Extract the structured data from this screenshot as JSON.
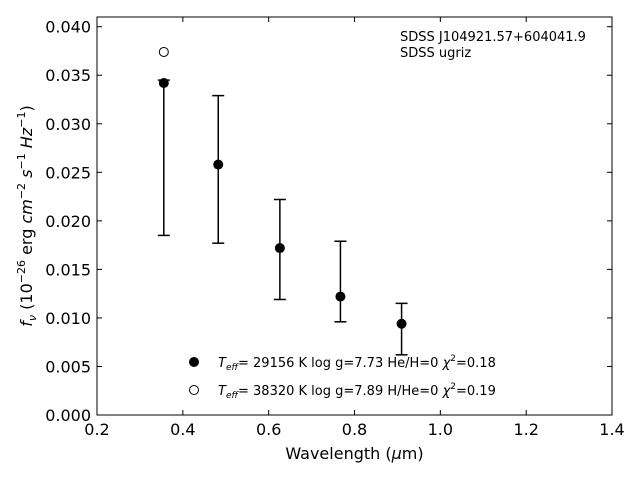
{
  "chart_data": {
    "type": "scatter",
    "title": "",
    "xlabel": "Wavelength (μm)",
    "ylabel": "f_ν (10^-26 erg cm^-2 s^-1 Hz^-1)",
    "xlim": [
      0.2,
      1.4
    ],
    "ylim": [
      0.0,
      0.041
    ],
    "x_ticks": [
      "0.2",
      "0.4",
      "0.6",
      "0.8",
      "1.0",
      "1.2",
      "1.4"
    ],
    "y_ticks": [
      "0.000",
      "0.005",
      "0.010",
      "0.015",
      "0.020",
      "0.025",
      "0.030",
      "0.035",
      "0.040"
    ],
    "grid": false,
    "legend_position": "bottom-center",
    "annotations": [
      "SDSS J104921.57+604041.9",
      "SDSS ugriz"
    ],
    "observed": {
      "x": [
        0.3557,
        0.4825,
        0.6261,
        0.7672,
        0.9097
      ],
      "y": [
        0.0342,
        0.0258,
        0.0172,
        0.0122,
        0.0094
      ],
      "yerr_lower": [
        0.0157,
        0.0081,
        0.0053,
        0.0026,
        0.0032
      ],
      "yerr_upper": [
        0.0003,
        0.0071,
        0.005,
        0.0057,
        0.0021
      ]
    },
    "series": [
      {
        "name": "T_eff= 29156 K  log g=7.73  He/H=0  χ²=0.18",
        "marker": "filled-circle",
        "x": [
          0.3557,
          0.4825,
          0.6261,
          0.7672,
          0.9097
        ],
        "y": [
          0.0342,
          0.0258,
          0.0172,
          0.0122,
          0.0094
        ]
      },
      {
        "name": "T_eff= 38320 K  log g=7.89  H/He=0  χ²=0.19",
        "marker": "open-circle",
        "x": [
          0.3557
        ],
        "y": [
          0.0374
        ]
      }
    ]
  }
}
